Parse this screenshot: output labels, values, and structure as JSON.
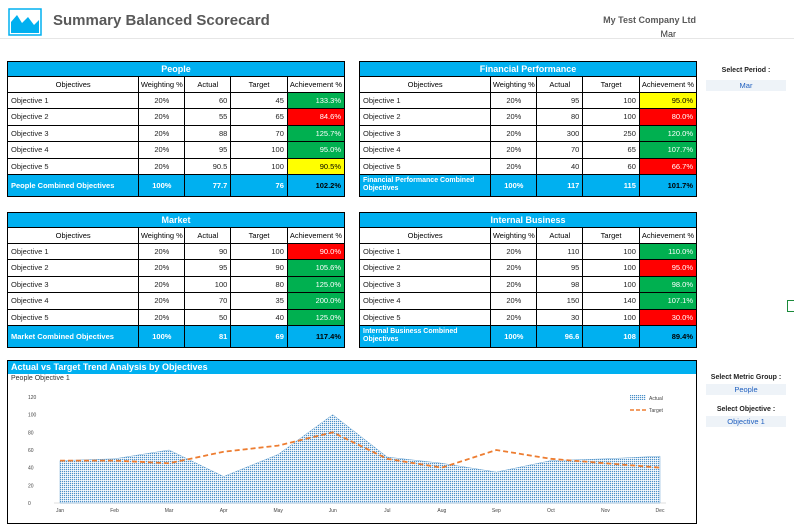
{
  "header": {
    "title": "Summary Balanced Scorecard",
    "company": "My Test Company Ltd",
    "period": "Mar"
  },
  "columns": [
    "Objectives",
    "Weighting %",
    "Actual",
    "Target",
    "Achievement %"
  ],
  "panels": {
    "people": {
      "title": "People",
      "rows": [
        {
          "name": "Objective 1",
          "weight": "20%",
          "actual": "60",
          "target": "45",
          "ach": "133.3%",
          "status": "green"
        },
        {
          "name": "Objective 2",
          "weight": "20%",
          "actual": "55",
          "target": "65",
          "ach": "84.6%",
          "status": "red"
        },
        {
          "name": "Objective 3",
          "weight": "20%",
          "actual": "88",
          "target": "70",
          "ach": "125.7%",
          "status": "green"
        },
        {
          "name": "Objective 4",
          "weight": "20%",
          "actual": "95",
          "target": "100",
          "ach": "95.0%",
          "status": "green"
        },
        {
          "name": "Objective 5",
          "weight": "20%",
          "actual": "90.5",
          "target": "100",
          "ach": "90.5%",
          "status": "yellow"
        }
      ],
      "total": {
        "name": "People Combined Objectives",
        "weight": "100%",
        "actual": "77.7",
        "target": "76",
        "ach": "102.2%",
        "status": "green"
      }
    },
    "financial": {
      "title": "Financial Performance",
      "rows": [
        {
          "name": "Objective 1",
          "weight": "20%",
          "actual": "95",
          "target": "100",
          "ach": "95.0%",
          "status": "yellow"
        },
        {
          "name": "Objective 2",
          "weight": "20%",
          "actual": "80",
          "target": "100",
          "ach": "80.0%",
          "status": "red"
        },
        {
          "name": "Objective 3",
          "weight": "20%",
          "actual": "300",
          "target": "250",
          "ach": "120.0%",
          "status": "green"
        },
        {
          "name": "Objective 4",
          "weight": "20%",
          "actual": "70",
          "target": "65",
          "ach": "107.7%",
          "status": "green"
        },
        {
          "name": "Objective 5",
          "weight": "20%",
          "actual": "40",
          "target": "60",
          "ach": "66.7%",
          "status": "red"
        }
      ],
      "total": {
        "name": "Financial Performance Combined Objectives",
        "weight": "100%",
        "actual": "117",
        "target": "115",
        "ach": "101.7%",
        "status": "green"
      }
    },
    "market": {
      "title": "Market",
      "rows": [
        {
          "name": "Objective 1",
          "weight": "20%",
          "actual": "90",
          "target": "100",
          "ach": "90.0%",
          "status": "red"
        },
        {
          "name": "Objective 2",
          "weight": "20%",
          "actual": "95",
          "target": "90",
          "ach": "105.6%",
          "status": "green"
        },
        {
          "name": "Objective 3",
          "weight": "20%",
          "actual": "100",
          "target": "80",
          "ach": "125.0%",
          "status": "green"
        },
        {
          "name": "Objective 4",
          "weight": "20%",
          "actual": "70",
          "target": "35",
          "ach": "200.0%",
          "status": "green"
        },
        {
          "name": "Objective 5",
          "weight": "20%",
          "actual": "50",
          "target": "40",
          "ach": "125.0%",
          "status": "green"
        }
      ],
      "total": {
        "name": "Market Combined Objectives",
        "weight": "100%",
        "actual": "81",
        "target": "69",
        "ach": "117.4%",
        "status": "green"
      }
    },
    "internal": {
      "title": "Internal Business",
      "rows": [
        {
          "name": "Objective 1",
          "weight": "20%",
          "actual": "110",
          "target": "100",
          "ach": "110.0%",
          "status": "green"
        },
        {
          "name": "Objective 2",
          "weight": "20%",
          "actual": "95",
          "target": "100",
          "ach": "95.0%",
          "status": "red"
        },
        {
          "name": "Objective 3",
          "weight": "20%",
          "actual": "98",
          "target": "100",
          "ach": "98.0%",
          "status": "green"
        },
        {
          "name": "Objective 4",
          "weight": "20%",
          "actual": "150",
          "target": "140",
          "ach": "107.1%",
          "status": "green"
        },
        {
          "name": "Objective 5",
          "weight": "20%",
          "actual": "30",
          "target": "100",
          "ach": "30.0%",
          "status": "red"
        }
      ],
      "total": {
        "name": "Internal Business Combined Objectives",
        "weight": "100%",
        "actual": "96.6",
        "target": "108",
        "ach": "89.4%",
        "status": "red"
      }
    }
  },
  "controls": {
    "period_label": "Select Period :",
    "period_value": "Mar",
    "metric_label": "Select Metric Group :",
    "metric_value": "People",
    "objective_label": "Select Objective :",
    "objective_value": "Objective 1"
  },
  "chart": {
    "panel_title": "Actual vs Target Trend Analysis by Objectives",
    "subtitle": "People Objective 1"
  },
  "colors": {
    "accent": "#00b0f0",
    "green": "#00b050",
    "red": "#ff0000",
    "yellow": "#ffff00",
    "actual_area": "#4a90c8",
    "target_line": "#ed7d31"
  },
  "chart_data": {
    "type": "area",
    "categories": [
      "Jan",
      "Feb",
      "Mar",
      "Apr",
      "May",
      "Jun",
      "Jul",
      "Aug",
      "Sep",
      "Oct",
      "Nov",
      "Dec"
    ],
    "series": [
      {
        "name": "Actual",
        "type": "area",
        "values": [
          48,
          50,
          60,
          30,
          55,
          100,
          52,
          45,
          35,
          48,
          50,
          53
        ]
      },
      {
        "name": "Target",
        "type": "line-dashed",
        "values": [
          48,
          48,
          45,
          58,
          65,
          80,
          50,
          40,
          60,
          50,
          45,
          40
        ]
      }
    ],
    "yticks": [
      "0",
      "20",
      "40",
      "60",
      "80",
      "100",
      "120"
    ],
    "ylim": [
      0,
      120
    ],
    "legend": [
      "Actual",
      "Target"
    ],
    "legend_position": "top-right",
    "grid": false
  }
}
